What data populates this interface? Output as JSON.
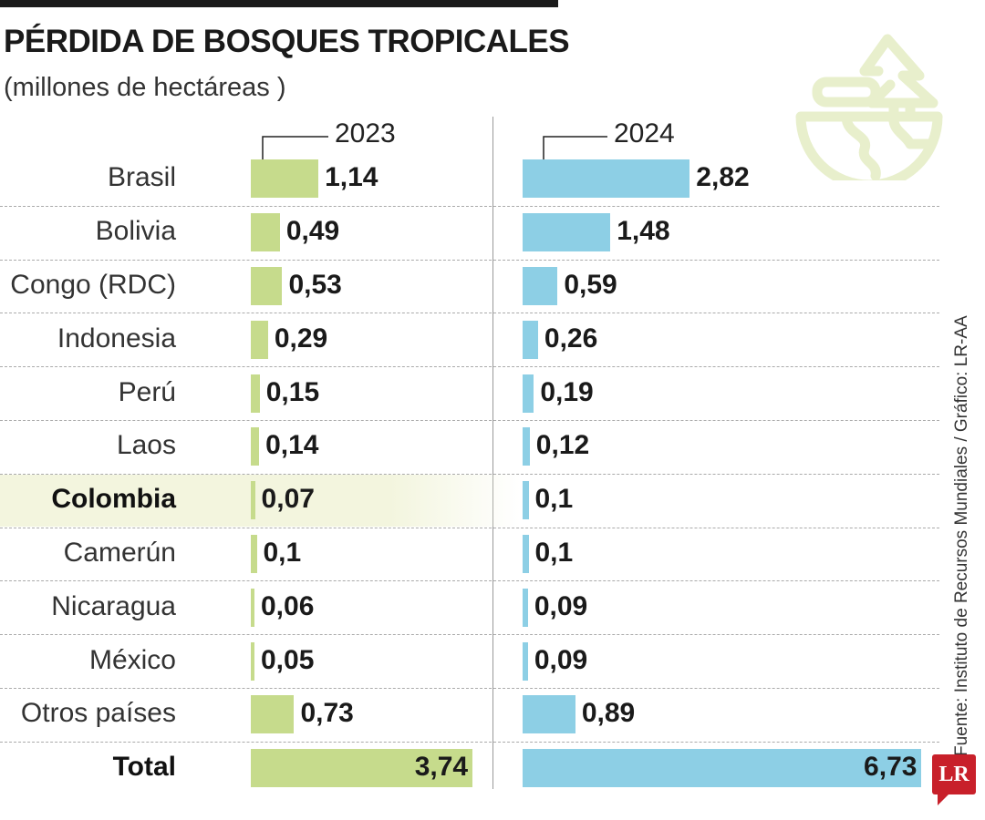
{
  "header": {
    "title": "PÉRDIDA DE BOSQUES TROPICALES",
    "subtitle": "(millones de hectáreas )"
  },
  "source": "Fuente: Instituto de Recursos Mundiales / Gráfico: LR-AA",
  "logo": "LR",
  "colors": {
    "y2023": "#c6db8c",
    "y2024": "#8dcfe5",
    "highlight": "#f3f5de",
    "icon": "#e8efcc"
  },
  "chart_data": {
    "type": "bar",
    "title": "PÉRDIDA DE BOSQUES TROPICALES",
    "ylabel": "millones de hectáreas",
    "categories": [
      "Brasil",
      "Bolivia",
      "Congo (RDC)",
      "Indonesia",
      "Perú",
      "Laos",
      "Colombia",
      "Camerún",
      "Nicaragua",
      "México",
      "Otros países"
    ],
    "highlight": "Colombia",
    "series": [
      {
        "name": "2023",
        "values": [
          1.14,
          0.49,
          0.53,
          0.29,
          0.15,
          0.14,
          0.07,
          0.1,
          0.06,
          0.05,
          0.73
        ],
        "labels": [
          "1,14",
          "0,49",
          "0,53",
          "0,29",
          "0,15",
          "0,14",
          "0,07",
          "0,1",
          "0,06",
          "0,05",
          "0,73"
        ],
        "total": 3.74,
        "total_label": "3,74"
      },
      {
        "name": "2024",
        "values": [
          2.82,
          1.48,
          0.59,
          0.26,
          0.19,
          0.12,
          0.1,
          0.1,
          0.09,
          0.09,
          0.89
        ],
        "labels": [
          "2,82",
          "1,48",
          "0,59",
          "0,26",
          "0,19",
          "0,12",
          "0,1",
          "0,1",
          "0,09",
          "0,09",
          "0,89"
        ],
        "total": 6.73,
        "total_label": "6,73"
      }
    ],
    "total_label": "Total"
  }
}
